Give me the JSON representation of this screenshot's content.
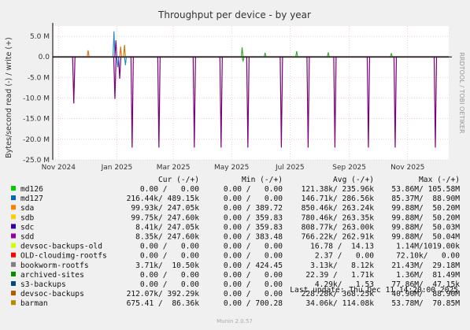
{
  "chart_data": {
    "type": "line",
    "title": "Throughput per device - by year",
    "ylabel": "Bytes/second read (-) / write (+)",
    "side_label": "RRDTOOL / TOBI OETIKER",
    "ylim": [
      -25000000,
      7500000
    ],
    "y_ticks": [
      {
        "value": 5000000,
        "label": "5.0 M"
      },
      {
        "value": 0,
        "label": "0.0"
      },
      {
        "value": -5000000,
        "label": "-5.0 M"
      },
      {
        "value": -10000000,
        "label": "-10.0 M"
      },
      {
        "value": -15000000,
        "label": "-15.0 M"
      },
      {
        "value": -20000000,
        "label": "-20.0 M"
      },
      {
        "value": -25000000,
        "label": "-25.0 M"
      }
    ],
    "x_range": [
      "2024-10-26",
      "2025-12-14"
    ],
    "x_ticks": [
      {
        "date": "2024-11-01",
        "label": "Nov 2024"
      },
      {
        "date": "2025-01-01",
        "label": "Jan 2025"
      },
      {
        "date": "2025-03-01",
        "label": "Mar 2025"
      },
      {
        "date": "2025-05-01",
        "label": "May 2025"
      },
      {
        "date": "2025-07-01",
        "label": "Jul 2025"
      },
      {
        "date": "2025-09-01",
        "label": "Sep 2025"
      },
      {
        "date": "2025-11-01",
        "label": "Nov 2025"
      }
    ],
    "grid": true,
    "spikes": [
      {
        "date": "2024-11-17",
        "value": -11300000,
        "color": "#7a0078"
      },
      {
        "date": "2024-12-30",
        "value": -10200000,
        "color": "#7a0078"
      },
      {
        "date": "2025-01-04",
        "value": -5300000,
        "color": "#7a0078"
      },
      {
        "date": "2025-01-17",
        "value": -22000000,
        "color": "#7a0078"
      },
      {
        "date": "2025-02-14",
        "value": -22000000,
        "color": "#7a0078"
      },
      {
        "date": "2025-03-23",
        "value": -22000000,
        "color": "#7a0078"
      },
      {
        "date": "2025-04-20",
        "value": -22000000,
        "color": "#7a0078"
      },
      {
        "date": "2025-05-18",
        "value": -22000000,
        "color": "#7a0078"
      },
      {
        "date": "2025-06-22",
        "value": -22000000,
        "color": "#7a0078"
      },
      {
        "date": "2025-07-20",
        "value": -22000000,
        "color": "#7a0078"
      },
      {
        "date": "2025-08-17",
        "value": -22000000,
        "color": "#7a0078"
      },
      {
        "date": "2025-09-21",
        "value": -22000000,
        "color": "#7a0078"
      },
      {
        "date": "2025-10-19",
        "value": -22000000,
        "color": "#7a0078"
      },
      {
        "date": "2025-11-30",
        "value": -22000000,
        "color": "#7a0078"
      }
    ],
    "bumps": [
      {
        "date": "2024-12-02",
        "value": 1600000,
        "color": "#e06c10"
      },
      {
        "date": "2024-12-29",
        "value": 6200000,
        "color": "#1e88c8"
      },
      {
        "date": "2024-12-31",
        "value": 4000000,
        "color": "#7a0078"
      },
      {
        "date": "2025-01-02",
        "value": -2500000,
        "color": "#1e88c8"
      },
      {
        "date": "2025-01-05",
        "value": 2500000,
        "color": "#e06c10"
      },
      {
        "date": "2025-01-09",
        "value": 2900000,
        "color": "#c07a00"
      },
      {
        "date": "2025-01-10",
        "value": -2000000,
        "color": "#1e88c8"
      },
      {
        "date": "2025-05-12",
        "value": 2300000,
        "color": "#2ea82e"
      },
      {
        "date": "2025-05-13",
        "value": -1100000,
        "color": "#2ea82e"
      },
      {
        "date": "2025-06-05",
        "value": 1000000,
        "color": "#2ea82e"
      },
      {
        "date": "2025-07-08",
        "value": 1400000,
        "color": "#2ea82e"
      },
      {
        "date": "2025-08-10",
        "value": 1100000,
        "color": "#2ea82e"
      },
      {
        "date": "2025-10-15",
        "value": 900000,
        "color": "#2ea82e"
      }
    ],
    "legend": {
      "header": {
        "cur": "Cur (-/+)",
        "min": "Min (-/+)",
        "avg": "Avg (-/+)",
        "max": "Max (-/+)"
      },
      "series": [
        {
          "name": "md126",
          "color": "#00cc00",
          "cur": "0.00 /   0.00",
          "min": "0.00 /   0.00",
          "avg": "121.38k/ 235.96k",
          "max": "53.86M/ 105.58M"
        },
        {
          "name": "md127",
          "color": "#0066b3",
          "cur": "216.44k/ 489.15k",
          "min": "0.00 /   0.00",
          "avg": "146.71k/ 286.56k",
          "max": "85.37M/  88.90M"
        },
        {
          "name": "sda",
          "color": "#ff8000",
          "cur": "99.93k/ 247.05k",
          "min": "0.00 / 389.72",
          "avg": "850.46k/ 263.24k",
          "max": "99.88M/  50.20M"
        },
        {
          "name": "sdb",
          "color": "#ffcc00",
          "cur": "99.75k/ 247.60k",
          "min": "0.00 / 359.83",
          "avg": "780.46k/ 263.35k",
          "max": "99.88M/  50.20M"
        },
        {
          "name": "sdc",
          "color": "#330099",
          "cur": "8.41k/ 247.05k",
          "min": "0.00 / 359.83",
          "avg": "808.77k/ 263.00k",
          "max": "99.88M/  50.03M"
        },
        {
          "name": "sdd",
          "color": "#990099",
          "cur": "8.35k/ 247.60k",
          "min": "0.00 / 383.48",
          "avg": "766.22k/ 262.91k",
          "max": "99.88M/  50.04M"
        },
        {
          "name": "devsoc-backups-old",
          "color": "#ccff00",
          "cur": "0.00 /   0.00",
          "min": "0.00 /   0.00",
          "avg": "16.78 /  14.13",
          "max": "1.14M/1019.00k"
        },
        {
          "name": "OLD-cloudimg-rootfs",
          "color": "#ff0000",
          "cur": "0.00 /   0.00",
          "min": "0.00 /   0.00",
          "avg": "2.37 /   0.00",
          "max": "72.10k/   0.00"
        },
        {
          "name": "bookworm-rootfs",
          "color": "#808080",
          "cur": "3.71k/  10.50k",
          "min": "0.00 / 424.45",
          "avg": "3.13k/   8.12k",
          "max": "21.43M/  29.18M"
        },
        {
          "name": "archived-sites",
          "color": "#008f00",
          "cur": "0.00 /   0.00",
          "min": "0.00 /   0.00",
          "avg": "22.39 /   1.71k",
          "max": "1.36M/  81.49M"
        },
        {
          "name": "s3-backups",
          "color": "#00487d",
          "cur": "0.00 /   0.00",
          "min": "0.00 /   0.00",
          "avg": "4.29k/   1.53",
          "max": "77.86M/  47.15k"
        },
        {
          "name": "devsoc-backups",
          "color": "#b35a00",
          "cur": "212.07k/ 392.29k",
          "min": "0.00 /   0.00",
          "avg": "228.28k/ 368.25k",
          "max": "40.90M/  88.90M"
        },
        {
          "name": "barman",
          "color": "#b38f00",
          "cur": "675.41 /  86.36k",
          "min": "0.00 / 700.28",
          "avg": "34.06k/ 114.08k",
          "max": "53.78M/  70.85M"
        }
      ]
    },
    "last_update": "Last update: Thu Dec 11 14:20:00 2025",
    "footer": "Munin 2.0.57"
  }
}
